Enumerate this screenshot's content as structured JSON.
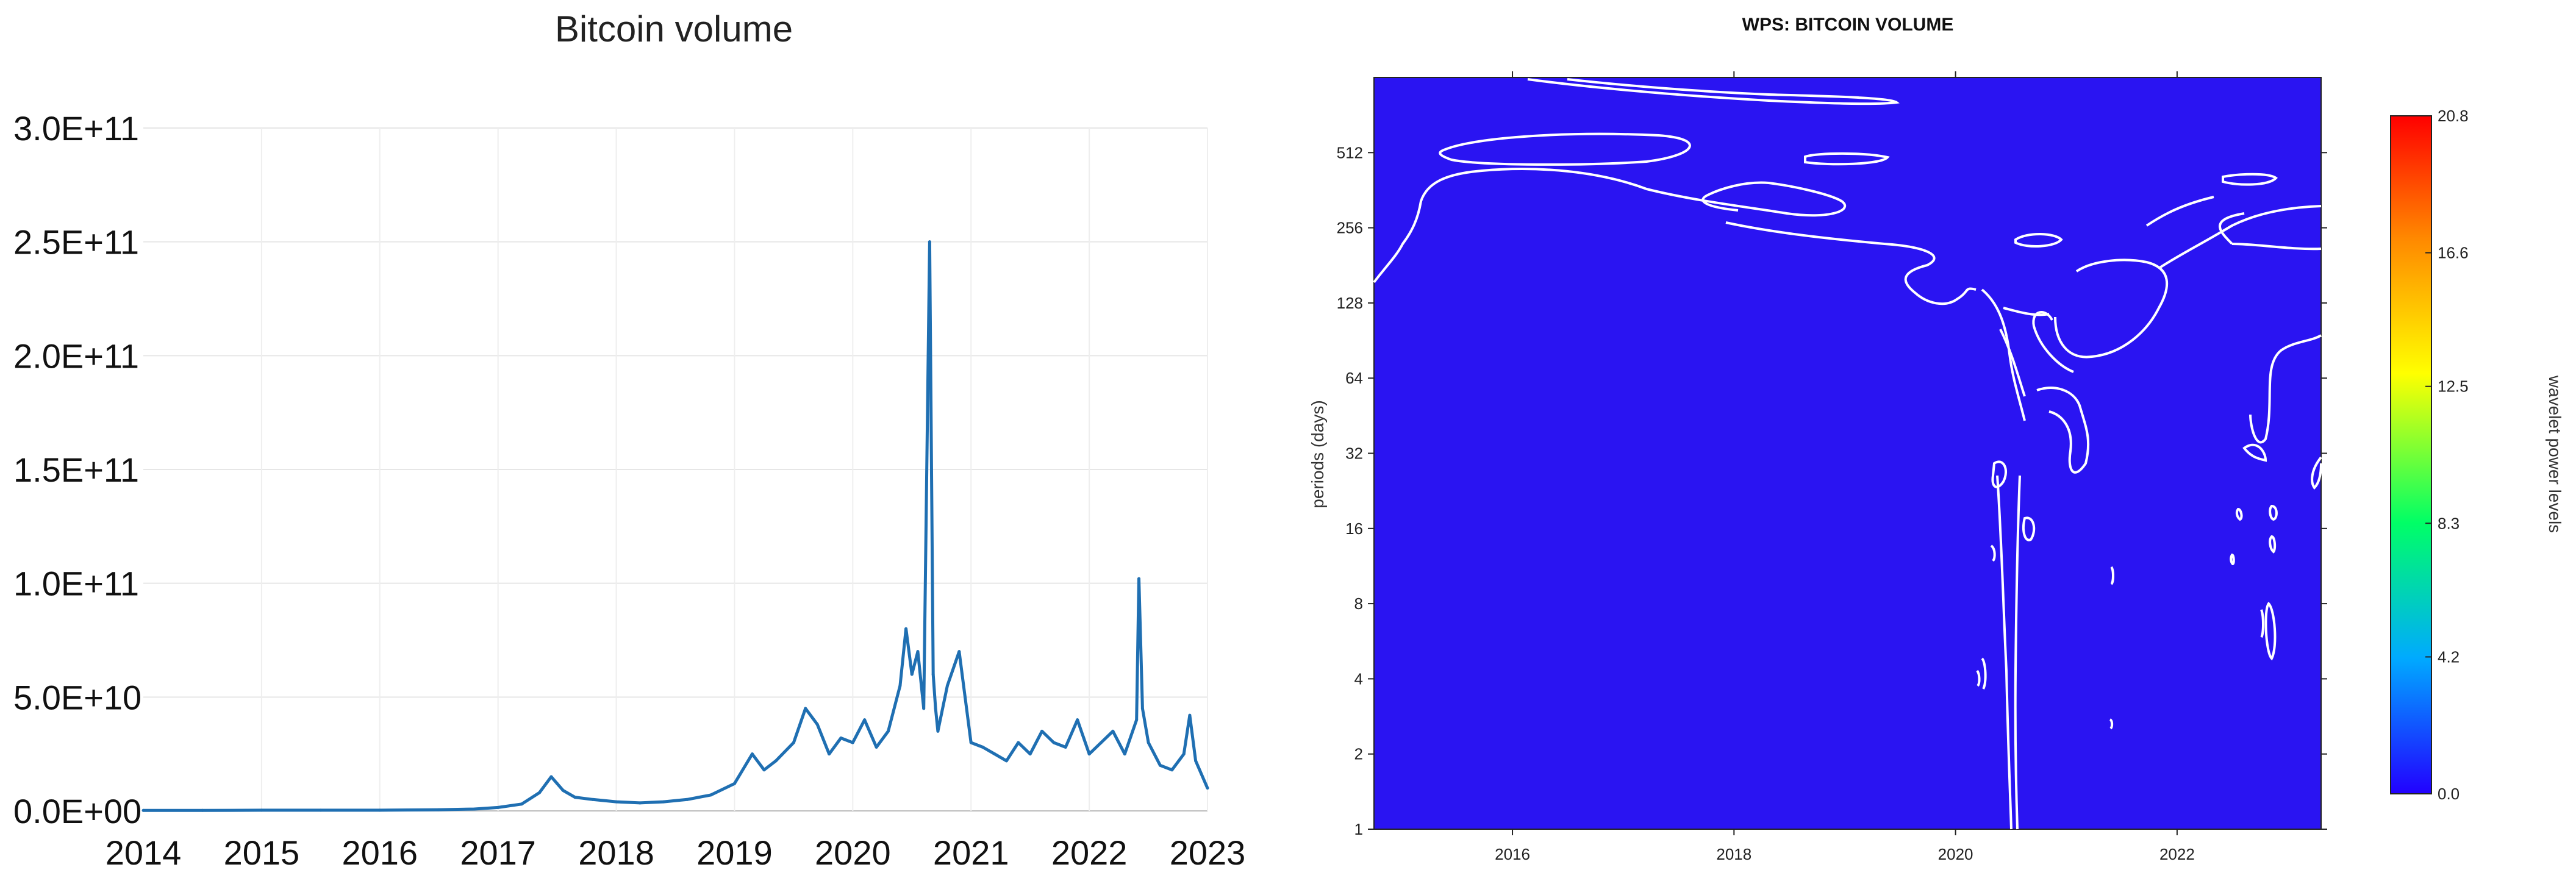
{
  "chart_data": [
    {
      "type": "line",
      "title": "Bitcoin volume",
      "xlabel": "",
      "ylabel": "",
      "y_tick_labels": [
        "0.0E+00",
        "5.0E+10",
        "1.0E+11",
        "1.5E+11",
        "2.0E+11",
        "2.5E+11",
        "3.0E+11"
      ],
      "x_tick_labels": [
        "2014",
        "2015",
        "2016",
        "2017",
        "2018",
        "2019",
        "2020",
        "2021",
        "2022",
        "2023"
      ],
      "ylim": [
        0,
        300000000000
      ],
      "xlim": [
        2014.0,
        2023.0
      ],
      "grid": true,
      "legend": "none",
      "series": [
        {
          "color": "#1f6fb2",
          "x": [
            2014.0,
            2014.5,
            2015.0,
            2015.5,
            2016.0,
            2016.5,
            2016.8,
            2017.0,
            2017.2,
            2017.35,
            2017.45,
            2017.5,
            2017.55,
            2017.65,
            2017.8,
            2018.0,
            2018.2,
            2018.4,
            2018.6,
            2018.8,
            2019.0,
            2019.15,
            2019.25,
            2019.35,
            2019.5,
            2019.6,
            2019.7,
            2019.8,
            2019.9,
            2020.0,
            2020.1,
            2020.2,
            2020.3,
            2020.4,
            2020.45,
            2020.5,
            2020.55,
            2020.6,
            2020.65,
            2020.68,
            2020.7,
            2020.72,
            2020.8,
            2020.9,
            2021.0,
            2021.1,
            2021.2,
            2021.3,
            2021.4,
            2021.5,
            2021.6,
            2021.7,
            2021.8,
            2021.9,
            2022.0,
            2022.1,
            2022.2,
            2022.3,
            2022.4,
            2022.42,
            2022.45,
            2022.5,
            2022.6,
            2022.7,
            2022.8,
            2022.85,
            2022.9,
            2023.0
          ],
          "y": [
            200000000,
            200000000,
            300000000,
            300000000,
            300000000,
            500000000,
            800000000,
            1500000000,
            3000000000,
            8000000000,
            15000000000,
            12000000000,
            9000000000,
            6000000000,
            5000000000,
            4000000000,
            3500000000,
            4000000000,
            5000000000,
            7000000000,
            12000000000,
            25000000000,
            18000000000,
            22000000000,
            30000000000,
            45000000000,
            38000000000,
            25000000000,
            32000000000,
            30000000000,
            40000000000,
            28000000000,
            35000000000,
            55000000000,
            80000000000,
            60000000000,
            70000000000,
            45000000000,
            250000000000,
            60000000000,
            45000000000,
            35000000000,
            55000000000,
            70000000000,
            30000000000,
            28000000000,
            25000000000,
            22000000000,
            30000000000,
            25000000000,
            35000000000,
            30000000000,
            28000000000,
            40000000000,
            25000000000,
            30000000000,
            35000000000,
            25000000000,
            40000000000,
            102000000000,
            45000000000,
            30000000000,
            20000000000,
            18000000000,
            25000000000,
            42000000000,
            22000000000,
            10000000000
          ]
        }
      ]
    },
    {
      "type": "heatmap",
      "title": "WPS: BITCOIN VOLUME",
      "xlabel": "",
      "ylabel": "periods (days)",
      "x_tick_labels": [
        "2016",
        "2018",
        "2020",
        "2022"
      ],
      "y_tick_labels": [
        "1",
        "2",
        "4",
        "8",
        "16",
        "32",
        "64",
        "128",
        "256",
        "512"
      ],
      "y_scale": "log2",
      "xlim": [
        2014.75,
        2023.3
      ],
      "ylim": [
        1,
        1024
      ],
      "background_color": "#2a14f2",
      "contour_color": "#ffffff",
      "colorbar": {
        "label": "wavelet power levels",
        "tick_labels": [
          "0.0",
          "4.2",
          "8.3",
          "12.5",
          "16.6",
          "20.8"
        ],
        "range": [
          0.0,
          20.8
        ],
        "colors": [
          "#2200ff",
          "#00aaff",
          "#00ff66",
          "#ffff00",
          "#ff8800",
          "#ff0000"
        ]
      }
    }
  ]
}
